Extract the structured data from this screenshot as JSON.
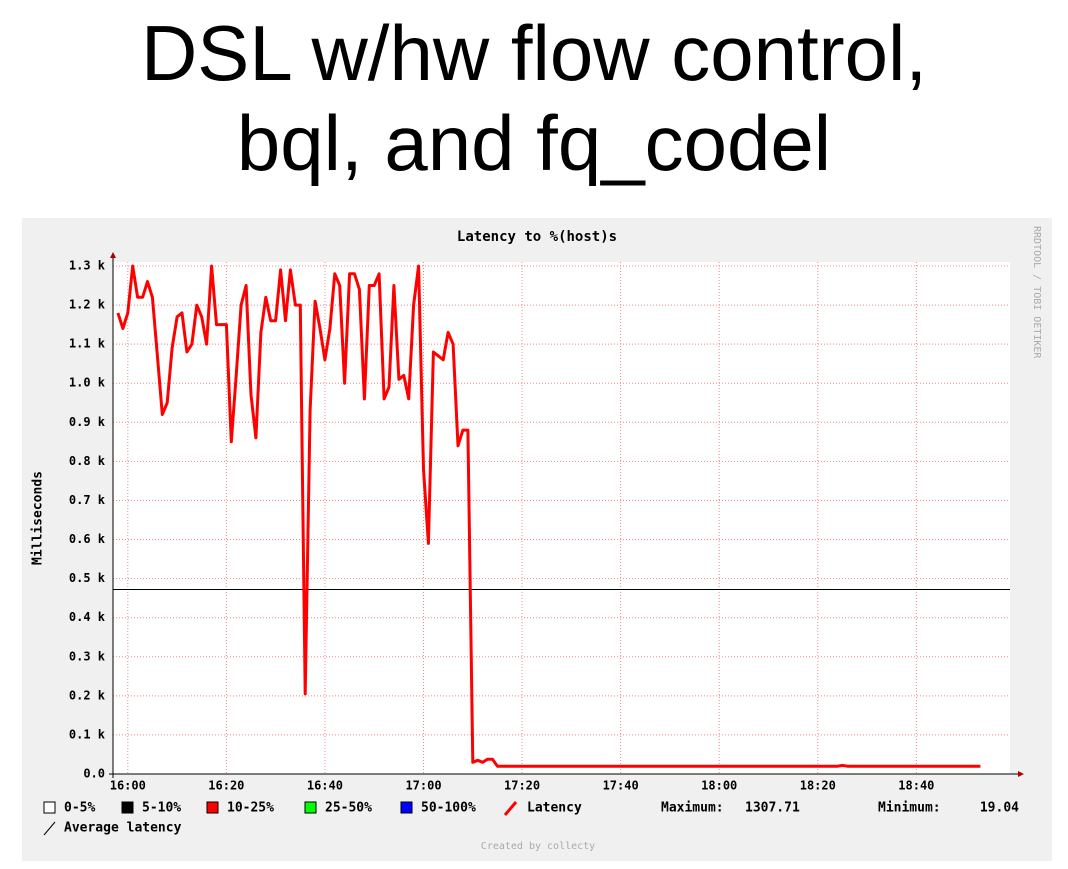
{
  "slide_title": [
    "DSL w/hw flow control,",
    "bql, and fq_codel"
  ],
  "chart_data": {
    "type": "line",
    "title": "Latency to %(host)s",
    "y_label": "Milliseconds",
    "watermark": "RRDTOOL / TOBI OETIKER",
    "footer": "Created by collecty",
    "x": [
      "15:58",
      "15:59",
      "16:00",
      "16:01",
      "16:02",
      "16:03",
      "16:04",
      "16:05",
      "16:06",
      "16:07",
      "16:08",
      "16:09",
      "16:10",
      "16:11",
      "16:12",
      "16:13",
      "16:14",
      "16:15",
      "16:16",
      "16:17",
      "16:18",
      "16:19",
      "16:20",
      "16:21",
      "16:22",
      "16:23",
      "16:24",
      "16:25",
      "16:26",
      "16:27",
      "16:28",
      "16:29",
      "16:30",
      "16:31",
      "16:32",
      "16:33",
      "16:34",
      "16:35",
      "16:36",
      "16:37",
      "16:38",
      "16:39",
      "16:40",
      "16:41",
      "16:42",
      "16:43",
      "16:44",
      "16:45",
      "16:46",
      "16:47",
      "16:48",
      "16:49",
      "16:50",
      "16:51",
      "16:52",
      "16:53",
      "16:54",
      "16:55",
      "16:56",
      "16:57",
      "16:58",
      "16:59",
      "17:00",
      "17:01",
      "17:02",
      "17:03",
      "17:04",
      "17:05",
      "17:06",
      "17:07",
      "17:08",
      "17:09",
      "17:10",
      "17:11",
      "17:12",
      "17:13",
      "17:14",
      "17:15",
      "18:24",
      "18:25",
      "18:26",
      "18:53"
    ],
    "series": [
      {
        "name": "Latency",
        "color": "#ff0000",
        "values": [
          1180,
          1140,
          1180,
          1300,
          1220,
          1220,
          1260,
          1220,
          1070,
          920,
          950,
          1090,
          1170,
          1180,
          1080,
          1100,
          1200,
          1170,
          1100,
          1300,
          1150,
          1150,
          1150,
          850,
          1020,
          1200,
          1250,
          970,
          860,
          1130,
          1220,
          1160,
          1160,
          1290,
          1160,
          1290,
          1200,
          1200,
          205,
          930,
          1210,
          1140,
          1060,
          1140,
          1280,
          1250,
          1000,
          1280,
          1280,
          1240,
          960,
          1250,
          1250,
          1280,
          960,
          990,
          1250,
          1010,
          1020,
          960,
          1200,
          1300,
          780,
          590,
          1080,
          1070,
          1060,
          1130,
          1100,
          840,
          880,
          880,
          30,
          35,
          30,
          38,
          38,
          20,
          20,
          22,
          20,
          20
        ]
      }
    ],
    "average": {
      "name": "Average latency",
      "value": 472,
      "color": "#000000"
    },
    "legend": [
      {
        "name": "0-5%",
        "color": "#ffffff"
      },
      {
        "name": "5-10%",
        "color": "#000000"
      },
      {
        "name": "10-25%",
        "color": "#ff0000"
      },
      {
        "name": "25-50%",
        "color": "#00ff00"
      },
      {
        "name": "50-100%",
        "color": "#0000ff"
      }
    ],
    "maximum_label": "Maximum:",
    "maximum": 1307.71,
    "minimum_label": "Minimum:",
    "minimum": 19.04,
    "xlim": [
      "15:57",
      "18:59"
    ],
    "xticks": [
      "16:00",
      "16:20",
      "16:40",
      "17:00",
      "17:20",
      "17:40",
      "18:00",
      "18:20",
      "18:40"
    ],
    "ylim": [
      0,
      1300
    ],
    "yticks": [
      {
        "value": 0,
        "label": "0.0"
      },
      {
        "value": 100,
        "label": "0.1 k"
      },
      {
        "value": 200,
        "label": "0.2 k"
      },
      {
        "value": 300,
        "label": "0.3 k"
      },
      {
        "value": 400,
        "label": "0.4 k"
      },
      {
        "value": 500,
        "label": "0.5 k"
      },
      {
        "value": 600,
        "label": "0.6 k"
      },
      {
        "value": 700,
        "label": "0.7 k"
      },
      {
        "value": 800,
        "label": "0.8 k"
      },
      {
        "value": 900,
        "label": "0.9 k"
      },
      {
        "value": 1000,
        "label": "1.0 k"
      },
      {
        "value": 1100,
        "label": "1.1 k"
      },
      {
        "value": 1200,
        "label": "1.2 k"
      },
      {
        "value": 1300,
        "label": "1.3 k"
      }
    ],
    "grid": true
  }
}
